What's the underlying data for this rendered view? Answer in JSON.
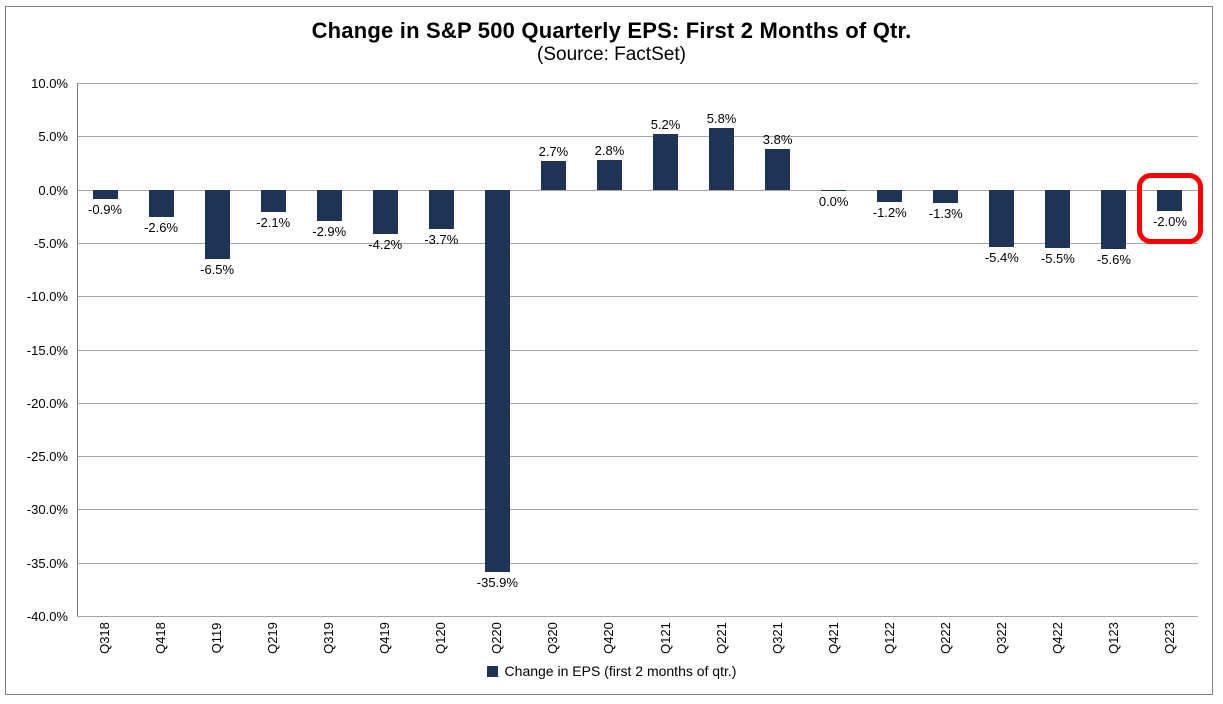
{
  "chart_data": {
    "type": "bar",
    "title": "Change in S&P 500 Quarterly EPS: First 2 Months of Qtr.",
    "subtitle": "(Source: FactSet)",
    "categories": [
      "Q318",
      "Q418",
      "Q119",
      "Q219",
      "Q319",
      "Q419",
      "Q120",
      "Q220",
      "Q320",
      "Q420",
      "Q121",
      "Q221",
      "Q321",
      "Q421",
      "Q122",
      "Q222",
      "Q322",
      "Q422",
      "Q123",
      "Q223"
    ],
    "values": [
      -0.9,
      -2.6,
      -6.5,
      -2.1,
      -2.9,
      -4.2,
      -3.7,
      -35.9,
      2.7,
      2.8,
      5.2,
      5.8,
      3.8,
      0.0,
      -1.2,
      -1.3,
      -5.4,
      -5.5,
      -5.6,
      -2.0
    ],
    "data_labels": [
      "-0.9%",
      "-2.6%",
      "-6.5%",
      "-2.1%",
      "-2.9%",
      "-4.2%",
      "-3.7%",
      "-35.9%",
      "2.7%",
      "2.8%",
      "5.2%",
      "5.8%",
      "3.8%",
      "0.0%",
      "-1.2%",
      "-1.3%",
      "-5.4%",
      "-5.5%",
      "-5.6%",
      "-2.0%"
    ],
    "ylim": [
      -40,
      10
    ],
    "ytick_step": 5,
    "ytick_labels": [
      "10.0%",
      "5.0%",
      "0.0%",
      "-5.0%",
      "-10.0%",
      "-15.0%",
      "-20.0%",
      "-25.0%",
      "-30.0%",
      "-35.0%",
      "-40.0%"
    ],
    "grid": true,
    "legend": "Change in EPS (first 2 months of qtr.)",
    "legend_position": "bottom",
    "highlight": {
      "category": "Q223",
      "shape": "rounded-rect-outline"
    },
    "colors": {
      "bar": "#1F3354",
      "highlight_box": "#FE0000",
      "gridline": "#A6A6A6",
      "axis": "#808080",
      "frame_border": "#808080",
      "text": "#000000"
    }
  }
}
